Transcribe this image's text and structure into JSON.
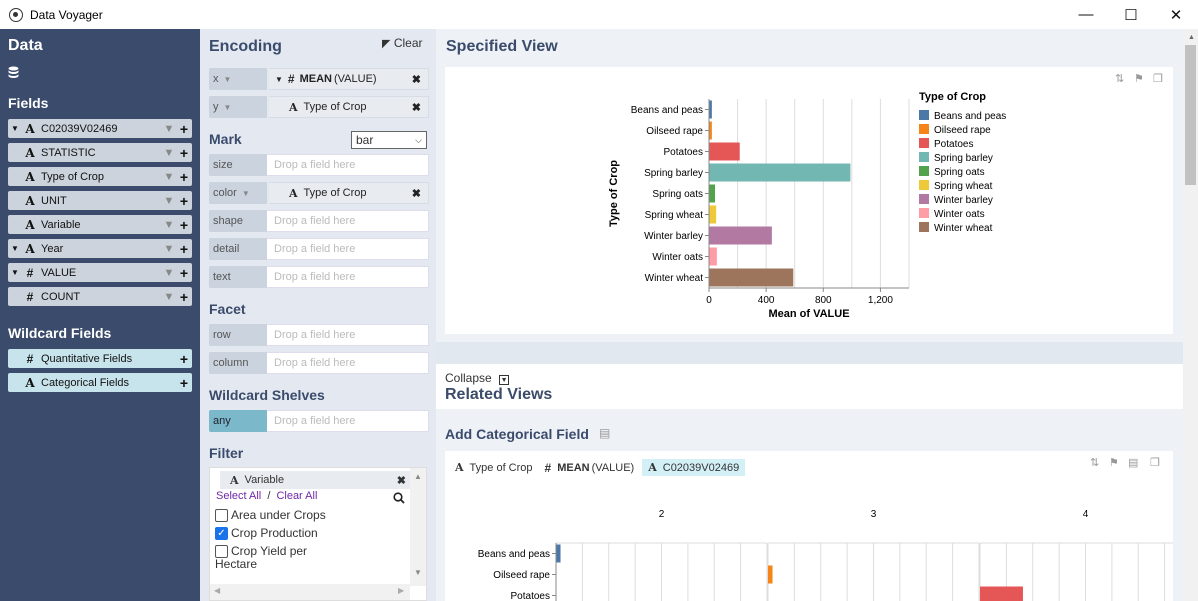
{
  "window": {
    "title": "Data Voyager",
    "minimize": "—",
    "maximize": "☐",
    "close": "✕"
  },
  "sidebar": {
    "data_heading": "Data",
    "fields_heading": "Fields",
    "fields": [
      {
        "name": "C02039V02469",
        "type": "A",
        "caret": true
      },
      {
        "name": "STATISTIC",
        "type": "A",
        "caret": false
      },
      {
        "name": "Type of Crop",
        "type": "A",
        "caret": false
      },
      {
        "name": "UNIT",
        "type": "A",
        "caret": false
      },
      {
        "name": "Variable",
        "type": "A",
        "caret": false
      },
      {
        "name": "Year",
        "type": "A",
        "caret": true
      },
      {
        "name": "VALUE",
        "type": "#",
        "caret": true
      },
      {
        "name": "COUNT",
        "type": "#",
        "caret": false
      }
    ],
    "wildcard_heading": "Wildcard Fields",
    "wildcards": [
      {
        "name": "Quantitative Fields",
        "type": "#"
      },
      {
        "name": "Categorical Fields",
        "type": "A"
      }
    ]
  },
  "encoding": {
    "heading": "Encoding",
    "clear_label": "Clear",
    "x_label": "x",
    "x_field_agg": "MEAN",
    "x_field_name": "(VALUE)",
    "y_label": "y",
    "y_field": "Type of Crop",
    "mark_heading": "Mark",
    "mark_value": "bar",
    "size_label": "size",
    "color_label": "color",
    "color_field": "Type of Crop",
    "shape_label": "shape",
    "detail_label": "detail",
    "text_label": "text",
    "drop_placeholder": "Drop a field here",
    "facet_heading": "Facet",
    "row_label": "row",
    "column_label": "column",
    "wildcard_heading": "Wildcard Shelves",
    "any_label": "any",
    "filter_heading": "Filter",
    "filter_field": "Variable",
    "select_all": "Select All",
    "clear_all": "Clear All",
    "filter_sep": "/",
    "options": [
      {
        "label": "Area under Crops",
        "checked": false
      },
      {
        "label": "Crop Production",
        "checked": true
      },
      {
        "label": "Crop Yield per",
        "label2": "Hectare",
        "checked": false
      }
    ]
  },
  "specified": {
    "heading": "Specified View",
    "collapse_label": "Collapse",
    "related_heading": "Related Views",
    "add_cat_heading": "Add Categorical Field",
    "related_chips": [
      "Type of Crop",
      "MEAN",
      "(VALUE)",
      "C02039V02469"
    ],
    "facet_cols": [
      "2",
      "3",
      "4"
    ]
  },
  "colors": {
    "sidebar": "#3b4b6b",
    "accent": "#7bb8c9"
  },
  "chart_data": [
    {
      "type": "bar",
      "orientation": "horizontal",
      "categories": [
        "Beans and peas",
        "Oilseed rape",
        "Potatoes",
        "Spring barley",
        "Spring oats",
        "Spring wheat",
        "Winter barley",
        "Winter oats",
        "Winter wheat"
      ],
      "values": [
        20,
        20,
        215,
        990,
        42,
        50,
        440,
        55,
        590
      ],
      "colors": [
        "#4c78a8",
        "#f58518",
        "#e45756",
        "#72b7b2",
        "#54a24b",
        "#eeca3b",
        "#b279a2",
        "#ff9da6",
        "#9d755d"
      ],
      "xlabel": "Mean of VALUE",
      "ylabel": "Type of Crop",
      "xticks": [
        "0",
        "400",
        "800",
        "1,200"
      ],
      "xlim": [
        0,
        1400
      ],
      "legend_title": "Type of Crop",
      "legend_position": "right",
      "grid": true
    },
    {
      "type": "bar",
      "orientation": "horizontal",
      "facets": [
        "2",
        "3",
        "4"
      ],
      "categories": [
        "Beans and peas",
        "Oilseed rape",
        "Potatoes"
      ],
      "bars": [
        {
          "facet": "2",
          "category": "Beans and peas",
          "value": 20
        },
        {
          "facet": "3",
          "category": "Oilseed rape",
          "value": 20
        },
        {
          "facet": "4",
          "category": "Potatoes",
          "value": 190
        }
      ],
      "colors": [
        "#4c78a8",
        "#f58518",
        "#e45756"
      ]
    }
  ]
}
